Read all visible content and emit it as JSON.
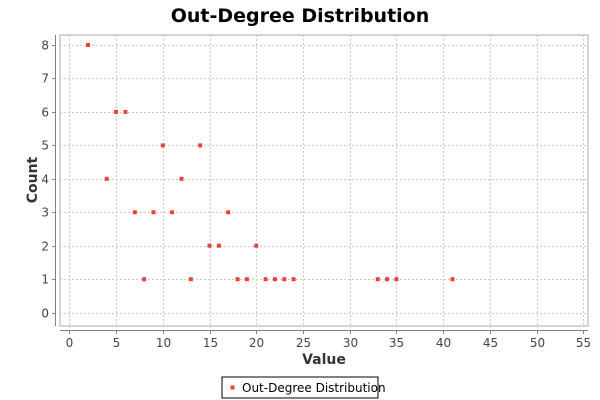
{
  "chart_data": {
    "type": "scatter",
    "title": "Out-Degree Distribution",
    "xlabel": "Value",
    "ylabel": "Count",
    "xlim": [
      -1,
      55.5
    ],
    "ylim": [
      -0.4,
      8.3
    ],
    "xticks": [
      0,
      5,
      10,
      15,
      20,
      25,
      30,
      35,
      40,
      45,
      50,
      55
    ],
    "yticks": [
      0,
      1,
      2,
      3,
      4,
      5,
      6,
      7,
      8
    ],
    "grid": true,
    "legend_position": "bottom",
    "series": [
      {
        "name": "Out-Degree Distribution",
        "color": "#e8413c",
        "points": [
          {
            "x": 2,
            "y": 8
          },
          {
            "x": 4,
            "y": 4
          },
          {
            "x": 5,
            "y": 6
          },
          {
            "x": 6,
            "y": 6
          },
          {
            "x": 7,
            "y": 3
          },
          {
            "x": 8,
            "y": 1
          },
          {
            "x": 9,
            "y": 3
          },
          {
            "x": 10,
            "y": 5
          },
          {
            "x": 11,
            "y": 3
          },
          {
            "x": 12,
            "y": 4
          },
          {
            "x": 13,
            "y": 1
          },
          {
            "x": 14,
            "y": 5
          },
          {
            "x": 15,
            "y": 2
          },
          {
            "x": 16,
            "y": 2
          },
          {
            "x": 17,
            "y": 3
          },
          {
            "x": 18,
            "y": 1
          },
          {
            "x": 19,
            "y": 1
          },
          {
            "x": 20,
            "y": 2
          },
          {
            "x": 21,
            "y": 1
          },
          {
            "x": 22,
            "y": 1
          },
          {
            "x": 23,
            "y": 1
          },
          {
            "x": 24,
            "y": 1
          },
          {
            "x": 33,
            "y": 1
          },
          {
            "x": 34,
            "y": 1
          },
          {
            "x": 35,
            "y": 1
          },
          {
            "x": 41,
            "y": 1
          }
        ]
      }
    ]
  }
}
